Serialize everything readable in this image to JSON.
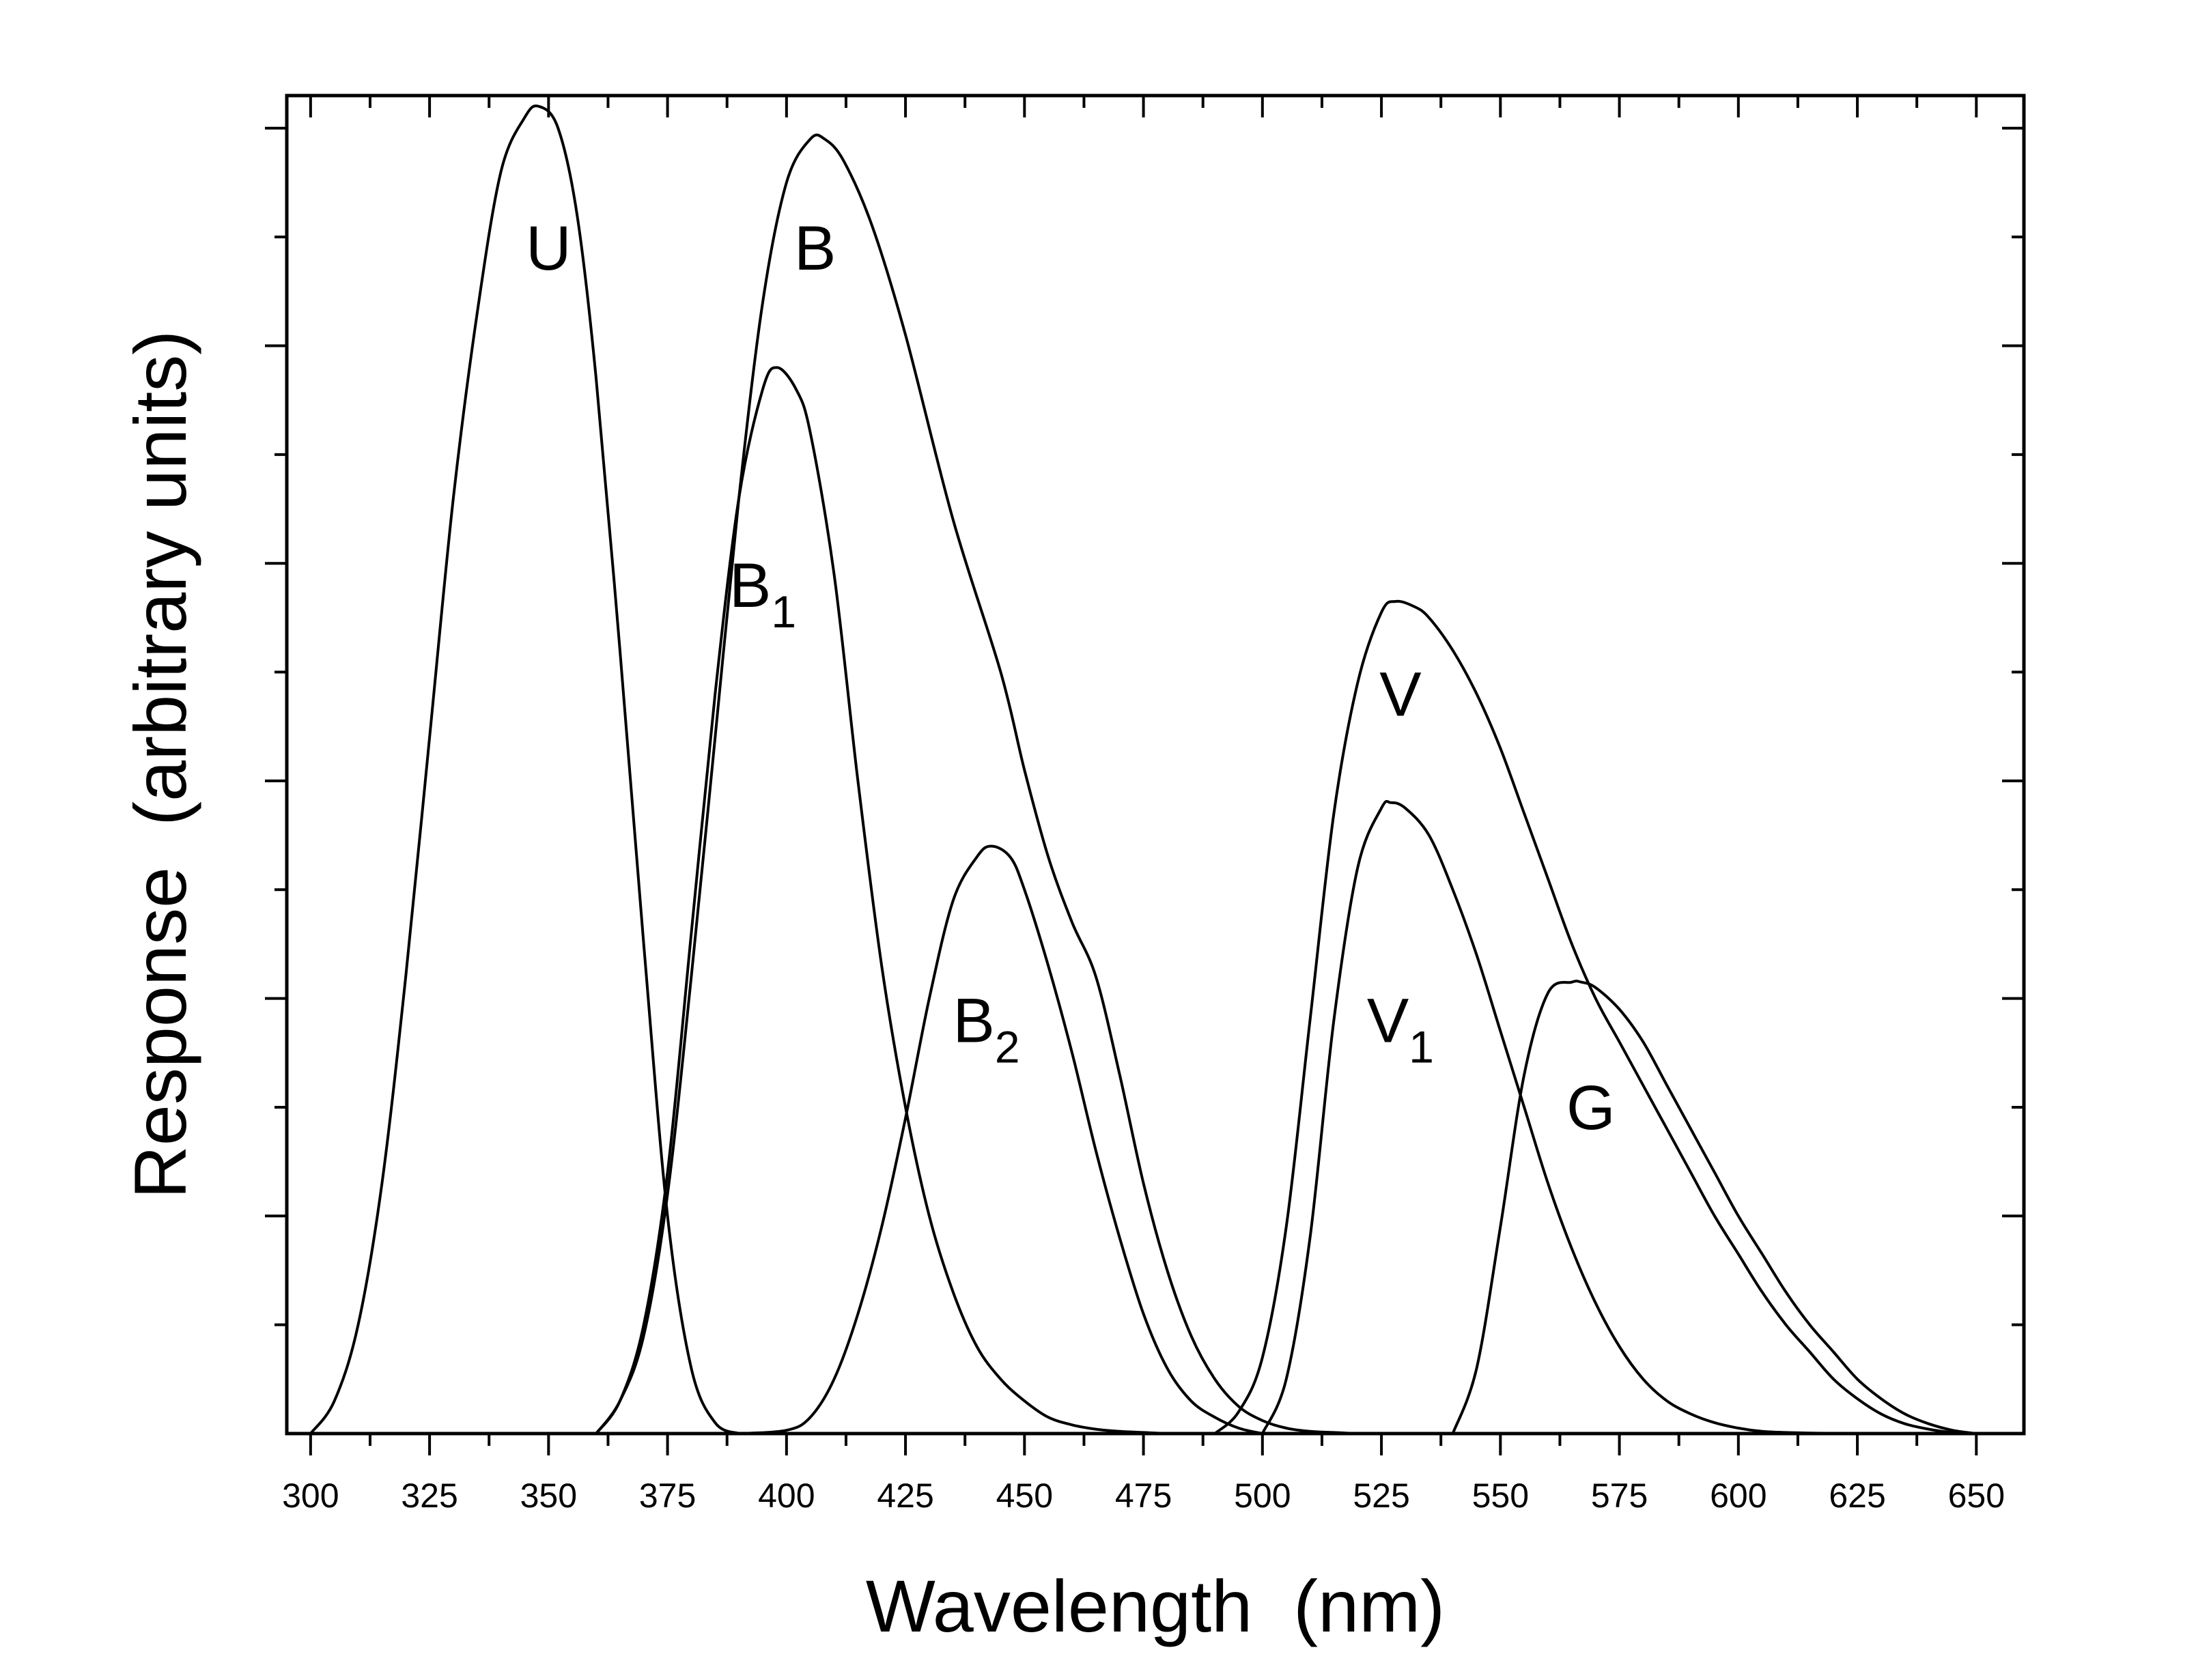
{
  "chart_data": {
    "type": "line",
    "xlabel": "Wavelength  (nm)",
    "ylabel": "Response  (arbitrary units)",
    "xlim": [
      295,
      660
    ],
    "ylim": [
      0,
      1.23
    ],
    "xticks": [
      300,
      325,
      350,
      375,
      400,
      425,
      450,
      475,
      500,
      525,
      550,
      575,
      600,
      625,
      650
    ],
    "xtick_labels": [
      "300",
      "325",
      "350",
      "375",
      "400",
      "425",
      "450",
      "475",
      "500",
      "525",
      "550",
      "575",
      "600",
      "625",
      "650"
    ],
    "ytick_values": [
      0.2,
      0.4,
      0.6,
      0.8,
      1.0,
      1.2
    ],
    "ytick_labels_shown": false,
    "grid": false,
    "series": [
      {
        "name": "U",
        "label": "U",
        "sub": "",
        "x": [
          300,
          305,
          310,
          315,
          320,
          325,
          330,
          335,
          340,
          345,
          348,
          352,
          356,
          360,
          365,
          370,
          375,
          380,
          385,
          390
        ],
        "y": [
          0.0,
          0.03,
          0.1,
          0.23,
          0.42,
          0.64,
          0.86,
          1.03,
          1.16,
          1.21,
          1.22,
          1.2,
          1.12,
          0.97,
          0.72,
          0.45,
          0.2,
          0.06,
          0.01,
          0.0
        ]
      },
      {
        "name": "B",
        "label": "B",
        "sub": "",
        "x": [
          360,
          365,
          370,
          375,
          380,
          385,
          390,
          395,
          400,
          405,
          408,
          412,
          418,
          425,
          435,
          445,
          450,
          455,
          460,
          465,
          470,
          475,
          480,
          485,
          490,
          495,
          500,
          505,
          510,
          515,
          520,
          525
        ],
        "y": [
          0.0,
          0.03,
          0.09,
          0.22,
          0.42,
          0.64,
          0.86,
          1.04,
          1.15,
          1.19,
          1.19,
          1.17,
          1.11,
          1.01,
          0.84,
          0.7,
          0.61,
          0.53,
          0.47,
          0.42,
          0.33,
          0.23,
          0.15,
          0.09,
          0.05,
          0.025,
          0.012,
          0.005,
          0.002,
          0.001,
          0.0,
          0.0
        ]
      },
      {
        "name": "B1",
        "label": "B",
        "sub": "1",
        "x": [
          360,
          365,
          370,
          375,
          380,
          385,
          390,
          395,
          398,
          402,
          405,
          410,
          415,
          420,
          425,
          430,
          435,
          440,
          445,
          450,
          455,
          460,
          465,
          470,
          475,
          480
        ],
        "y": [
          0.0,
          0.03,
          0.1,
          0.24,
          0.46,
          0.68,
          0.86,
          0.96,
          0.98,
          0.96,
          0.92,
          0.79,
          0.6,
          0.43,
          0.3,
          0.2,
          0.13,
          0.08,
          0.05,
          0.03,
          0.015,
          0.008,
          0.004,
          0.002,
          0.001,
          0.0
        ]
      },
      {
        "name": "B2",
        "label": "B",
        "sub": "2",
        "x": [
          390,
          400,
          405,
          410,
          415,
          420,
          425,
          430,
          435,
          440,
          443,
          447,
          450,
          455,
          460,
          465,
          470,
          475,
          480,
          485,
          490,
          495,
          500
        ],
        "y": [
          0.0,
          0.003,
          0.015,
          0.05,
          0.11,
          0.19,
          0.29,
          0.4,
          0.49,
          0.53,
          0.54,
          0.53,
          0.5,
          0.43,
          0.35,
          0.26,
          0.18,
          0.11,
          0.06,
          0.03,
          0.015,
          0.005,
          0.0
        ]
      },
      {
        "name": "V",
        "label": "V",
        "sub": "",
        "x": [
          490,
          495,
          500,
          505,
          510,
          515,
          520,
          525,
          528,
          532,
          535,
          540,
          545,
          550,
          555,
          560,
          565,
          570,
          575,
          580,
          585,
          590,
          595,
          600,
          605,
          610,
          615,
          620,
          625,
          630,
          635,
          640,
          645,
          650
        ],
        "y": [
          0.0,
          0.02,
          0.07,
          0.19,
          0.38,
          0.57,
          0.69,
          0.755,
          0.765,
          0.76,
          0.75,
          0.72,
          0.68,
          0.63,
          0.57,
          0.51,
          0.45,
          0.4,
          0.36,
          0.32,
          0.28,
          0.24,
          0.2,
          0.165,
          0.13,
          0.1,
          0.075,
          0.05,
          0.032,
          0.018,
          0.009,
          0.004,
          0.001,
          0.0
        ]
      },
      {
        "name": "V1",
        "label": "V",
        "sub": "1",
        "x": [
          500,
          505,
          510,
          515,
          520,
          525,
          527,
          530,
          535,
          540,
          545,
          550,
          555,
          560,
          565,
          570,
          575,
          580,
          585,
          590,
          595,
          600,
          605,
          610,
          615,
          620,
          625
        ],
        "y": [
          0.0,
          0.05,
          0.18,
          0.38,
          0.52,
          0.575,
          0.58,
          0.575,
          0.55,
          0.5,
          0.44,
          0.37,
          0.3,
          0.23,
          0.17,
          0.12,
          0.08,
          0.05,
          0.03,
          0.018,
          0.01,
          0.005,
          0.002,
          0.001,
          0.0005,
          0.0002,
          0.0
        ]
      },
      {
        "name": "G",
        "label": "G",
        "sub": "",
        "x": [
          540,
          545,
          550,
          555,
          560,
          565,
          567,
          570,
          575,
          580,
          585,
          590,
          595,
          600,
          605,
          610,
          615,
          620,
          625,
          630,
          635,
          640,
          645,
          650
        ],
        "y": [
          0.0,
          0.06,
          0.19,
          0.33,
          0.405,
          0.415,
          0.415,
          0.41,
          0.39,
          0.36,
          0.32,
          0.28,
          0.24,
          0.2,
          0.165,
          0.13,
          0.1,
          0.075,
          0.05,
          0.032,
          0.018,
          0.009,
          0.003,
          0.0
        ]
      }
    ],
    "labels": [
      {
        "text": "U",
        "sub": "",
        "x": 350,
        "y": 1.07
      },
      {
        "text": "B",
        "sub": "",
        "x": 406,
        "y": 1.07
      },
      {
        "text": "B",
        "sub": "1",
        "x": 395,
        "y": 0.76
      },
      {
        "text": "B",
        "sub": "2",
        "x": 442,
        "y": 0.36
      },
      {
        "text": "V",
        "sub": "",
        "x": 529,
        "y": 0.66
      },
      {
        "text": "V",
        "sub": "1",
        "x": 529,
        "y": 0.36
      },
      {
        "text": "G",
        "sub": "",
        "x": 569,
        "y": 0.28
      }
    ]
  }
}
